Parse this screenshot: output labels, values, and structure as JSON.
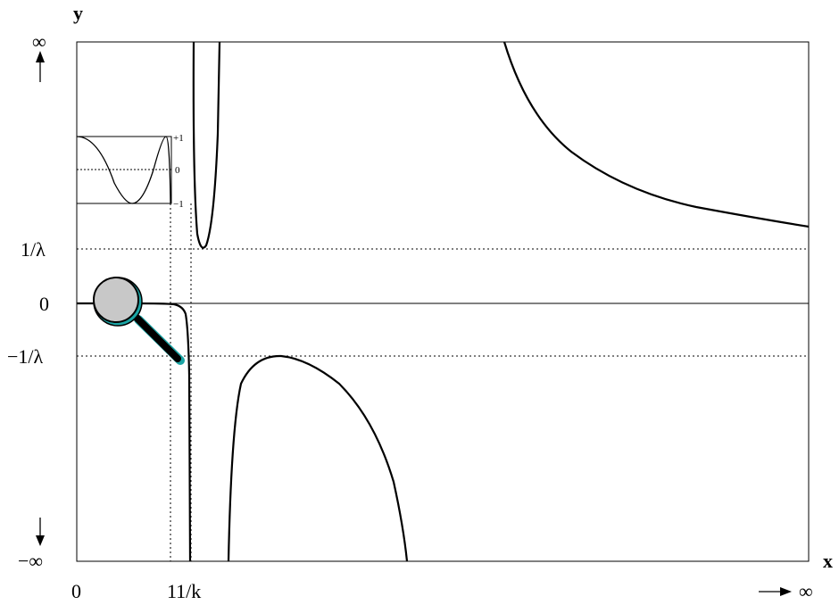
{
  "axes": {
    "y_label": "y",
    "x_label": "x",
    "y_top": "∞",
    "y_bottom": "−∞",
    "x_right": "∞",
    "y_ticks": {
      "inv_lambda": "1/λ",
      "zero": "0",
      "neg_inv_lambda": "−1/λ"
    },
    "x_ticks": {
      "zero": "0",
      "eleven_over_k": "11/k"
    }
  },
  "inset": {
    "tick_plus": "+1",
    "tick_zero": "0",
    "tick_minus": "−1"
  },
  "colors": {
    "curve": "#000000",
    "magnifier_lens": "#c8c8c8",
    "magnifier_rim": "#1ba5a5"
  },
  "icons": {
    "magnifier": "magnifying-glass-icon",
    "up_arrow": "arrow-up-icon",
    "down_arrow": "arrow-down-icon",
    "right_arrow": "arrow-right-icon"
  }
}
